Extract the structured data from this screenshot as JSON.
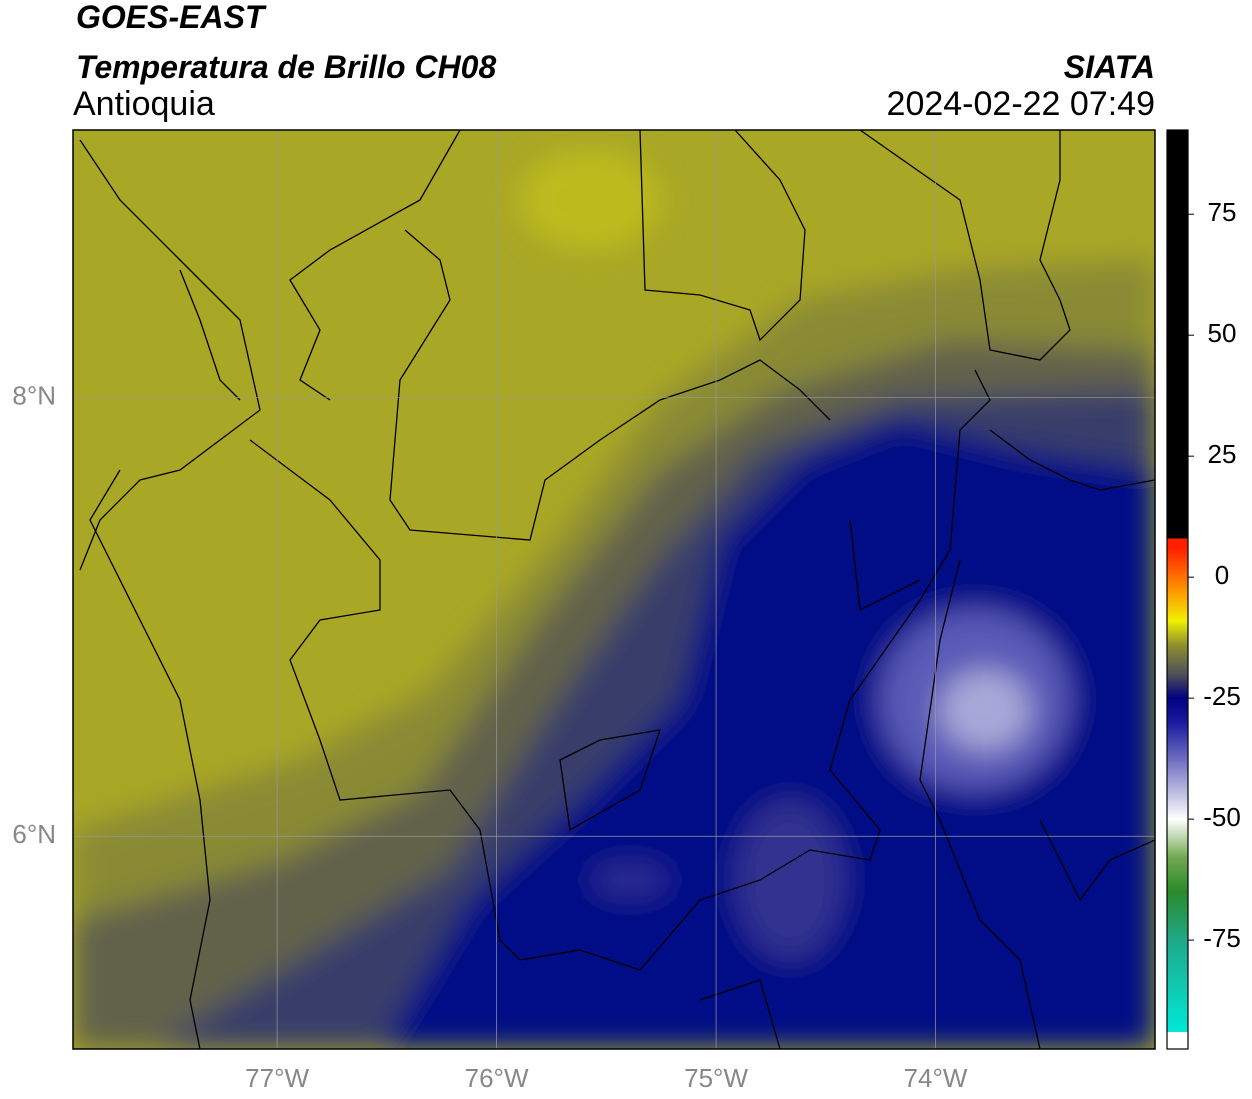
{
  "header": {
    "satellite": "GOES-EAST",
    "product": "Temperatura de Brillo CH08",
    "region": "Antioquia",
    "source": "SIATA",
    "datetime": "2024-02-22 07:49"
  },
  "map": {
    "xlim": [
      -77.93,
      -73.0
    ],
    "ylim": [
      5.03,
      9.22
    ],
    "xticks": [
      {
        "value": -77,
        "label": "77°W"
      },
      {
        "value": -76,
        "label": "76°W"
      },
      {
        "value": -75,
        "label": "75°W"
      },
      {
        "value": -74,
        "label": "74°W"
      }
    ],
    "yticks": [
      {
        "value": 8,
        "label": "8°N"
      },
      {
        "value": 6,
        "label": "6°N"
      }
    ],
    "grid": true
  },
  "colorbar": {
    "lim": [
      -97.5,
      92.4
    ],
    "ticks": [
      75,
      50,
      25,
      0,
      -25,
      -50,
      -75
    ],
    "stops": [
      {
        "value": -97.5,
        "color": "#ffffff"
      },
      {
        "value": -94,
        "color": "#ffffff"
      },
      {
        "value": -94,
        "color": "#00e8d8"
      },
      {
        "value": -75,
        "color": "#20a888"
      },
      {
        "value": -65,
        "color": "#2a8a2a"
      },
      {
        "value": -58,
        "color": "#70a850"
      },
      {
        "value": -50,
        "color": "#ffffff"
      },
      {
        "value": -40,
        "color": "#8888cc"
      },
      {
        "value": -30,
        "color": "#1a1aa0"
      },
      {
        "value": -25,
        "color": "#000080"
      },
      {
        "value": -20,
        "color": "#505058"
      },
      {
        "value": -14,
        "color": "#909030"
      },
      {
        "value": -9,
        "color": "#f0f000"
      },
      {
        "value": -3,
        "color": "#ff9900"
      },
      {
        "value": 6,
        "color": "#ff2000"
      },
      {
        "value": 8,
        "color": "#ff2000"
      },
      {
        "value": 8,
        "color": "#000000"
      },
      {
        "value": 92.4,
        "color": "#000000"
      }
    ]
  }
}
